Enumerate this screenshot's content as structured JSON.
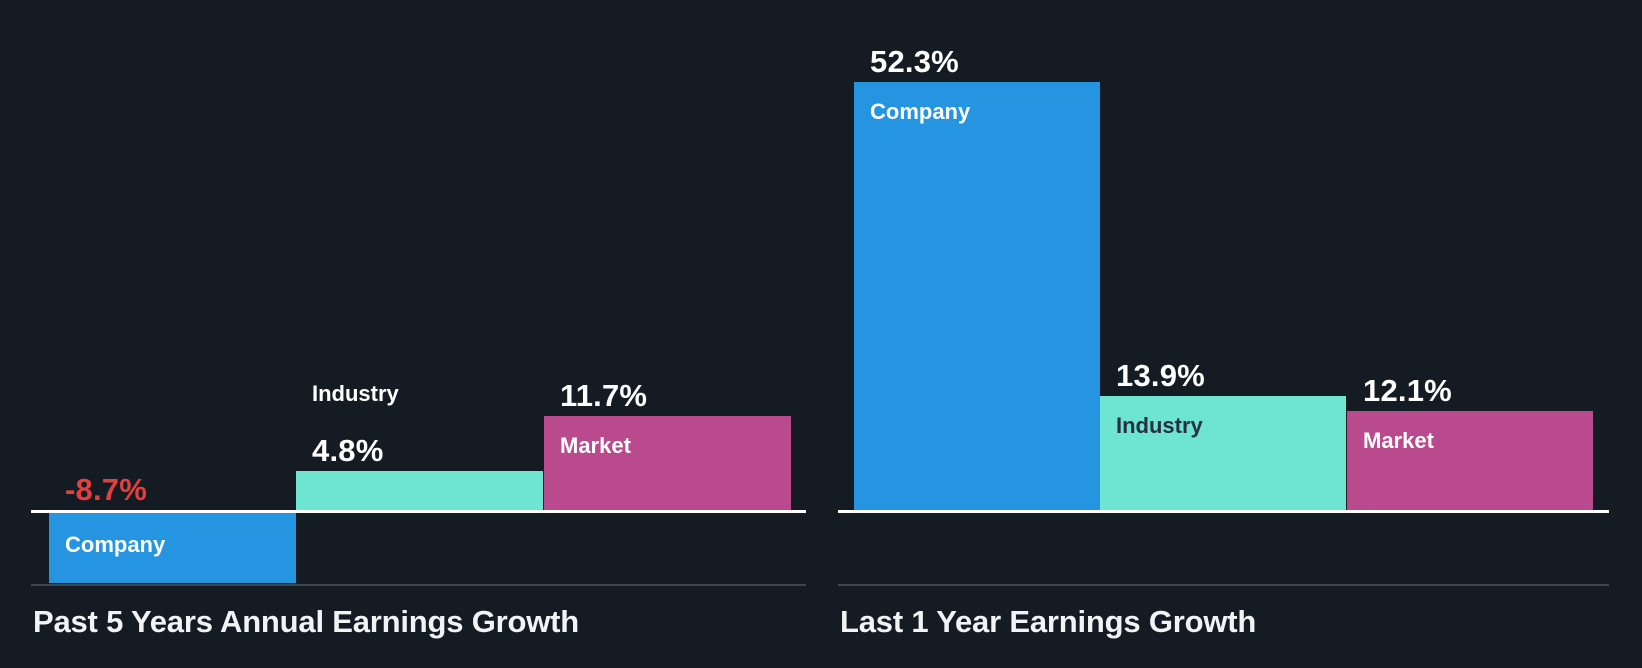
{
  "figure": {
    "background": "#151B23",
    "zero_line_color": "#FFFFFF",
    "bottom_line_color": "#40464E",
    "title_color": "#F2F3F5"
  },
  "chart_data": [
    {
      "type": "bar",
      "title": "Past 5 Years Annual Earnings Growth",
      "categories": [
        "Company",
        "Industry",
        "Market"
      ],
      "values": [
        -8.7,
        4.8,
        11.7
      ],
      "value_labels": [
        "-8.7%",
        "4.8%",
        "11.7%"
      ],
      "bar_colors": [
        "#2595E1",
        "#6DE5D1",
        "#B84A8D"
      ],
      "category_label_colors": [
        "#FFFFFF",
        "#FFFFFF",
        "#FFFFFF"
      ],
      "value_label_colors": [
        "#E43E3D",
        "#FFFFFF",
        "#FFFFFF"
      ],
      "xlabel": "",
      "ylabel": "",
      "ylim": [
        -9.2,
        12.5
      ],
      "baseline": 0,
      "grid": false,
      "legend": "none"
    },
    {
      "type": "bar",
      "title": "Last 1 Year Earnings Growth",
      "categories": [
        "Company",
        "Industry",
        "Market"
      ],
      "values": [
        52.3,
        13.9,
        12.1
      ],
      "value_labels": [
        "52.3%",
        "13.9%",
        "12.1%"
      ],
      "bar_colors": [
        "#2595E1",
        "#6DE5D1",
        "#B84A8D"
      ],
      "category_label_colors": [
        "#FFFFFF",
        "#273040",
        "#FFFFFF"
      ],
      "value_label_colors": [
        "#FFFFFF",
        "#FFFFFF",
        "#FFFFFF"
      ],
      "xlabel": "",
      "ylabel": "",
      "ylim": [
        0,
        53.5
      ],
      "baseline": 0,
      "grid": false,
      "legend": "none"
    }
  ]
}
